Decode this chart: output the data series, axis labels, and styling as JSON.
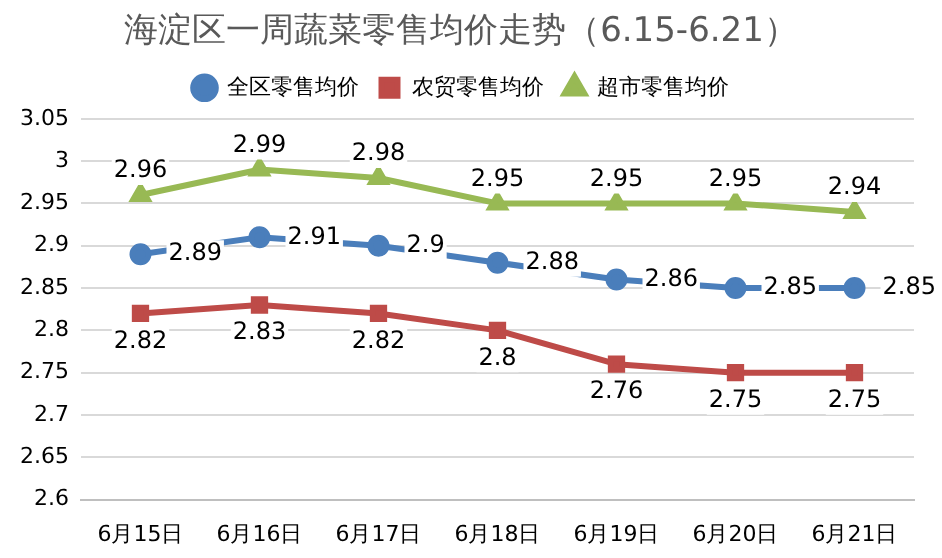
{
  "chart_data": {
    "type": "line",
    "title": "海淀区一周蔬菜零售均价走势（6.15-6.21）",
    "categories": [
      "6月15日",
      "6月16日",
      "6月17日",
      "6月18日",
      "6月19日",
      "6月20日",
      "6月21日"
    ],
    "series": [
      {
        "name": "全区零售均价",
        "color": "#4a7ebb",
        "marker": "circle",
        "values": [
          2.89,
          2.91,
          2.9,
          2.88,
          2.86,
          2.85,
          2.85
        ]
      },
      {
        "name": "农贸零售均价",
        "color": "#be4b48",
        "marker": "square",
        "values": [
          2.82,
          2.83,
          2.82,
          2.8,
          2.76,
          2.75,
          2.75
        ]
      },
      {
        "name": "超市零售均价",
        "color": "#98b954",
        "marker": "triangle",
        "values": [
          2.96,
          2.99,
          2.98,
          2.95,
          2.95,
          2.95,
          2.94
        ]
      }
    ],
    "ylim": [
      2.6,
      3.05
    ],
    "yticks": [
      2.6,
      2.65,
      2.7,
      2.75,
      2.8,
      2.85,
      2.9,
      2.95,
      3,
      3.05
    ],
    "grid": "y",
    "legend": "top",
    "data_labels": true,
    "line_style": "solid"
  }
}
